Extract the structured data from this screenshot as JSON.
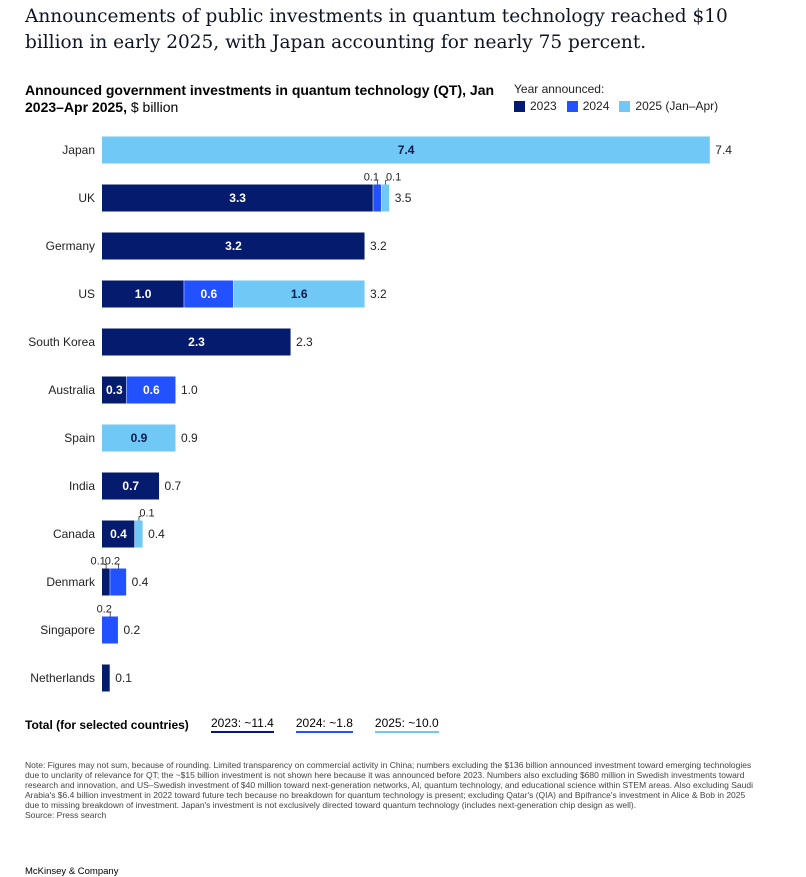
{
  "headline": "Announcements of public investments in quantum technology reached $10 billion in early 2025, with Japan accounting for nearly 75 percent.",
  "chart_subtitle_bold": "Announced government investments in quantum technology (QT), Jan 2023–Apr 2025,",
  "chart_subtitle_unit": " $ billion",
  "legend": {
    "title": "Year announced:",
    "items": [
      {
        "label": "2023",
        "color": "#051c6e"
      },
      {
        "label": "2024",
        "color": "#2251ff"
      },
      {
        "label": "2025 (Jan–Apr)",
        "color": "#6fc8f5"
      }
    ]
  },
  "chart_data": {
    "type": "bar",
    "orientation": "horizontal",
    "stacked": true,
    "title": "Announced government investments in quantum technology (QT), Jan 2023–Apr 2025, $ billion",
    "categories": [
      "Japan",
      "UK",
      "Germany",
      "US",
      "South Korea",
      "Australia",
      "Spain",
      "India",
      "Canada",
      "Denmark",
      "Singapore",
      "Netherlands"
    ],
    "series": [
      {
        "name": "2023",
        "color": "#051c6e",
        "values": [
          0,
          3.3,
          3.2,
          1.0,
          2.3,
          0.3,
          0,
          0.7,
          0.4,
          0.1,
          0,
          0.1
        ]
      },
      {
        "name": "2024",
        "color": "#2251ff",
        "values": [
          0,
          0.1,
          0,
          0.6,
          0,
          0.6,
          0,
          0,
          0,
          0.2,
          0.2,
          0
        ]
      },
      {
        "name": "2025 (Jan–Apr)",
        "color": "#6fc8f5",
        "values": [
          7.4,
          0.1,
          0,
          1.6,
          0,
          0,
          0.9,
          0,
          0.1,
          0,
          0,
          0
        ]
      }
    ],
    "segment_labels": [
      [
        "",
        "",
        "7.4"
      ],
      [
        "3.3",
        "0.1",
        "0.1"
      ],
      [
        "3.2",
        "",
        ""
      ],
      [
        "1.0",
        "0.6",
        "1.6"
      ],
      [
        "2.3",
        "",
        ""
      ],
      [
        "0.3",
        "0.6",
        ""
      ],
      [
        "",
        "",
        "0.9"
      ],
      [
        "0.7",
        "",
        ""
      ],
      [
        "0.4",
        "",
        "0.1"
      ],
      [
        "0.1",
        "0.2",
        ""
      ],
      [
        "",
        "0.2",
        ""
      ],
      [
        "",
        "",
        ""
      ]
    ],
    "totals": [
      "7.4",
      "3.5",
      "3.2",
      "3.2",
      "2.3",
      "1.0",
      "0.9",
      "0.7",
      "0.4",
      "0.4",
      "0.2",
      "0.1"
    ],
    "xlim": [
      0,
      7.4
    ]
  },
  "totals_row": {
    "label": "Total (for selected countries)",
    "y2023": "2023: ~11.4",
    "y2024": "2024: ~1.8",
    "y2025": "2025: ~10.0"
  },
  "note": "Note: Figures may not sum, because of rounding. Limited transparency on commercial activity in China; numbers excluding the $136 billion announced investment toward emerging technologies due to unclarity of relevance for QT; the ~$15 billion investment is not shown here because it was announced before 2023. Numbers also excluding $680 million in Swedish investments toward research and innovation, and US–Swedish investment of $40 million toward next-generation networks, AI, quantum technology, and educational science within STEM areas. Also excluding Saudi Arabia's $6.4 billion investment in 2022 toward future tech because no breakdown for quantum technology is present; excluding Qatar's (QIA) and Bpifrance's investment in Alice & Bob in 2025 due to missing breakdown of investment. Japan's investment is not exclusively directed toward quantum technology (includes next-generation chip design as well).",
  "source": "Source: Press search",
  "brand": "McKinsey & Company"
}
